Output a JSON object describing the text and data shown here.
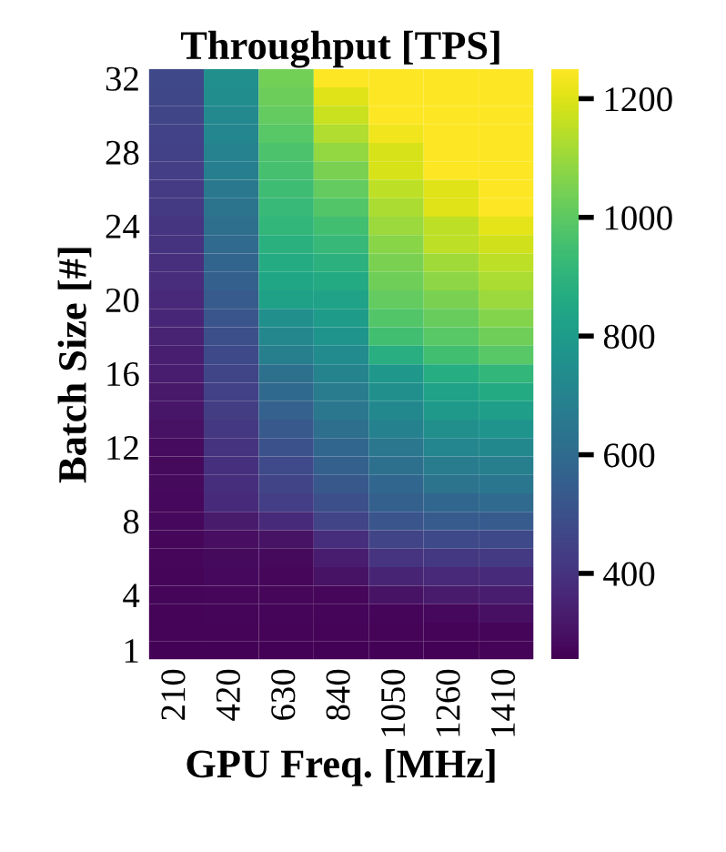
{
  "chart_data": {
    "type": "heatmap",
    "title": "Throughput [TPS]",
    "xlabel": "GPU Freq. [MHz]",
    "ylabel": "Batch Size [#]",
    "categories": [
      "210",
      "420",
      "630",
      "840",
      "1050",
      "1260",
      "1410"
    ],
    "y_categories": [
      "32",
      null,
      null,
      null,
      "28",
      null,
      null,
      null,
      "24",
      null,
      null,
      null,
      "20",
      null,
      null,
      null,
      "16",
      null,
      null,
      null,
      "12",
      null,
      null,
      null,
      "8",
      null,
      null,
      null,
      "4",
      null,
      null,
      "1"
    ],
    "cells": [
      [
        472,
        752,
        1040,
        1250,
        1250,
        1250,
        1250
      ],
      [
        466,
        740,
        1025,
        1200,
        1250,
        1250,
        1250
      ],
      [
        460,
        725,
        1010,
        1170,
        1250,
        1250,
        1250
      ],
      [
        452,
        710,
        990,
        1130,
        1230,
        1250,
        1250
      ],
      [
        444,
        695,
        970,
        1090,
        1190,
        1250,
        1250
      ],
      [
        436,
        675,
        955,
        1050,
        1190,
        1250,
        1250
      ],
      [
        428,
        655,
        940,
        1010,
        1150,
        1200,
        1250
      ],
      [
        420,
        635,
        925,
        980,
        1125,
        1200,
        1250
      ],
      [
        410,
        615,
        910,
        950,
        1100,
        1150,
        1210
      ],
      [
        400,
        595,
        885,
        920,
        1075,
        1150,
        1180
      ],
      [
        390,
        575,
        865,
        890,
        1050,
        1110,
        1150
      ],
      [
        380,
        555,
        845,
        860,
        1030,
        1080,
        1125
      ],
      [
        370,
        535,
        820,
        830,
        1010,
        1050,
        1100
      ],
      [
        360,
        515,
        750,
        800,
        980,
        1020,
        1065
      ],
      [
        350,
        495,
        715,
        770,
        950,
        990,
        1030
      ],
      [
        340,
        474,
        680,
        730,
        880,
        950,
        990
      ],
      [
        330,
        460,
        620,
        700,
        780,
        870,
        910
      ],
      [
        320,
        445,
        590,
        670,
        750,
        830,
        860
      ],
      [
        310,
        430,
        560,
        650,
        720,
        790,
        810
      ],
      [
        300,
        415,
        530,
        615,
        690,
        750,
        770
      ],
      [
        284,
        400,
        500,
        585,
        650,
        710,
        720
      ],
      [
        282,
        393,
        478,
        555,
        620,
        670,
        680
      ],
      [
        280,
        385,
        455,
        525,
        585,
        635,
        645
      ],
      [
        278,
        375,
        435,
        495,
        555,
        585,
        595
      ],
      [
        276,
        325,
        375,
        455,
        515,
        535,
        535
      ],
      [
        274,
        290,
        305,
        385,
        455,
        475,
        475
      ],
      [
        272,
        282,
        280,
        335,
        405,
        415,
        425
      ],
      [
        270,
        276,
        274,
        305,
        355,
        365,
        375
      ],
      [
        268,
        272,
        271,
        272,
        305,
        325,
        335
      ],
      [
        266,
        268,
        268,
        268,
        268,
        275,
        295
      ],
      [
        264,
        265,
        265,
        265,
        265,
        266,
        270
      ],
      [
        262,
        262,
        262,
        262,
        262,
        262,
        265
      ]
    ],
    "clim": [
      255,
      1250
    ],
    "cticks": [
      400,
      600,
      800,
      1000,
      1200
    ]
  }
}
